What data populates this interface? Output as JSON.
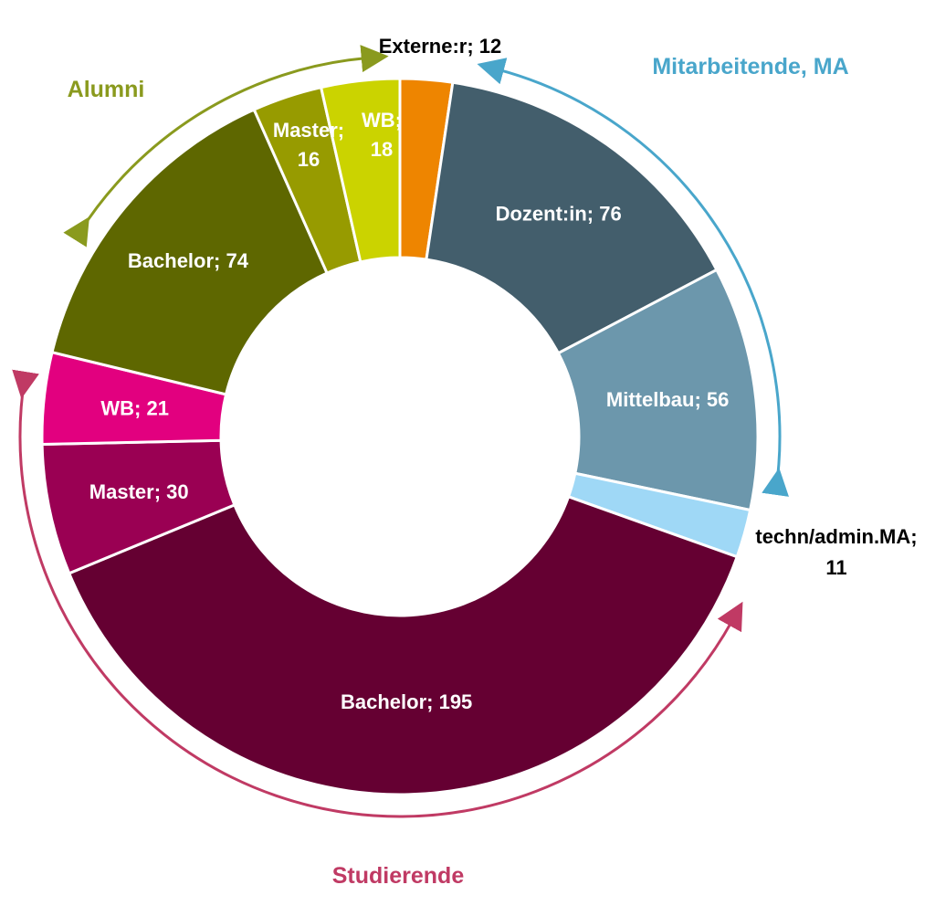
{
  "chart_data": {
    "type": "pie",
    "variant": "donut",
    "slices": [
      {
        "category": "Externe:r",
        "label": "Externe:r; 12",
        "value": 12,
        "color": "#EE8500",
        "group": ""
      },
      {
        "category": "Dozent:in",
        "label": "Dozent:in; 76",
        "value": 76,
        "color": "#435E6C",
        "group": "Mitarbeitende, MA"
      },
      {
        "category": "Mittelbau",
        "label": "Mittelbau; 56",
        "value": 56,
        "color": "#6C97AC",
        "group": "Mitarbeitende, MA"
      },
      {
        "category": "techn/admin.MA",
        "label": "techn/admin.MA; 11",
        "value": 11,
        "color": "#9FD8F6",
        "group": "Mitarbeitende, MA"
      },
      {
        "category": "Bachelor",
        "label": "Bachelor; 195",
        "value": 195,
        "color": "#650032",
        "group": "Studierende"
      },
      {
        "category": "Master",
        "label": "Master; 30",
        "value": 30,
        "color": "#9A0053",
        "group": "Studierende"
      },
      {
        "category": "WB",
        "label": "WB; 21",
        "value": 21,
        "color": "#E2007F",
        "group": "Studierende"
      },
      {
        "category": "Bachelor",
        "label": "Bachelor; 74",
        "value": 74,
        "color": "#5E6700",
        "group": "Alumni"
      },
      {
        "category": "Master",
        "label": "Master; 16",
        "value": 16,
        "color": "#979B00",
        "group": "Alumni"
      },
      {
        "category": "WB",
        "label": "WB; 18",
        "value": 18,
        "color": "#CBD300",
        "group": "Alumni"
      }
    ],
    "groups": [
      {
        "name": "Alumni",
        "color": "#8A9A1E"
      },
      {
        "name": "Mitarbeitende, MA",
        "color": "#49A6CB"
      },
      {
        "name": "Studierende",
        "color": "#C03A64"
      }
    ],
    "legend": "none"
  }
}
